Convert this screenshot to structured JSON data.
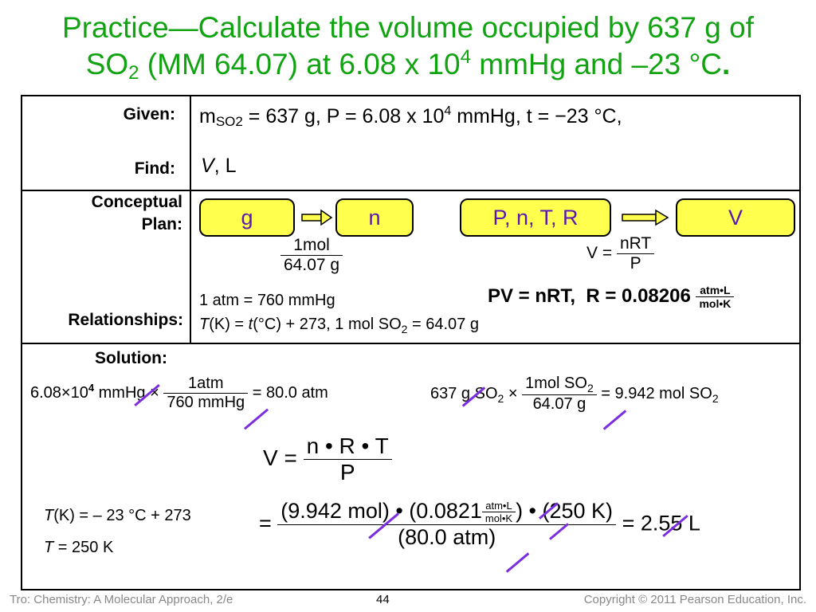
{
  "title": {
    "line1": "Practice—Calculate the volume occupied by 637 g of",
    "l2_a": "SO",
    "l2_sub": "2",
    "l2_b": " (MM 64.07) at 6.08 x 10",
    "l2_sup": "4",
    "l2_c": " mmHg and –23 °C",
    "l2_d": "."
  },
  "labels": {
    "given": "Given:",
    "find": "Find:",
    "conceptual1": "Conceptual",
    "conceptual2": "Plan:",
    "relationships": "Relationships:",
    "solution": "Solution:"
  },
  "given": {
    "m": "m",
    "m_sub": "SO2",
    "a": " = 637 g, P = 6.08 x 10",
    "sup": "4",
    "b": " mmHg, t = −23 °C,"
  },
  "find": {
    "v": "V",
    "rest": ", L"
  },
  "plan": {
    "node1": "g",
    "node2": "n",
    "node3": "P, n, T, R",
    "node4": "V",
    "f1_num": "1mol",
    "f1_den": "64.07 g",
    "f2_lhs": "V =",
    "f2_num": "nRT",
    "f2_den": "P"
  },
  "relationships": {
    "r1": "1 atm = 760 mmHg",
    "r2_t": "T",
    "r2_a": "(K) = ",
    "r2_t2": "t",
    "r2_b": "(°C) + 273,  1 mol SO",
    "r2_sub": "2",
    "r2_c": "  = 64.07 g",
    "pv": "PV = nRT,",
    "r_eq": "R = 0.08206",
    "r_num": "atm•L",
    "r_den": "mol•K"
  },
  "solution": {
    "s1_a": "6.08×10",
    "s1_sup": "4",
    "s1_b": " mmHg ×",
    "s1_num": "1atm",
    "s1_den": "760 mmHg",
    "s1_res": "= 80.0 atm",
    "s2_a": "637 g SO",
    "s2_sub": "2",
    "s2_x": " ×",
    "s2_num": "1mol SO",
    "s2_num_sub": "2",
    "s2_den": "64.07 g",
    "s2_res": "= 9.942 mol SO",
    "s2_res_sub": "2",
    "v_lhs": "V =",
    "v_num": "n • R • T",
    "v_den": "P",
    "t1_a": "T",
    "t1_b": "(K) = – 23 °C + 273",
    "t2_a": "T",
    "t2_b": " = 250 K",
    "big_eq": "=",
    "big_num_a": "(9.942 mol) • (0.0821",
    "big_num_fn": "atm•L",
    "big_num_fd": "mol•K",
    "big_num_b": ") • (250 K)",
    "big_den": "(80.0 atm)",
    "big_res": "= 2.55 L"
  },
  "footer": {
    "left": "Tro: Chemistry: A Molecular Approach, 2/e",
    "page": "44",
    "right": "Copyright © 2011 Pearson Education, Inc."
  },
  "colors": {
    "title": "#11a311",
    "node_fill": "#ffff4d",
    "node_text": "#5a18b0",
    "cancel": "#7b2ee0"
  }
}
